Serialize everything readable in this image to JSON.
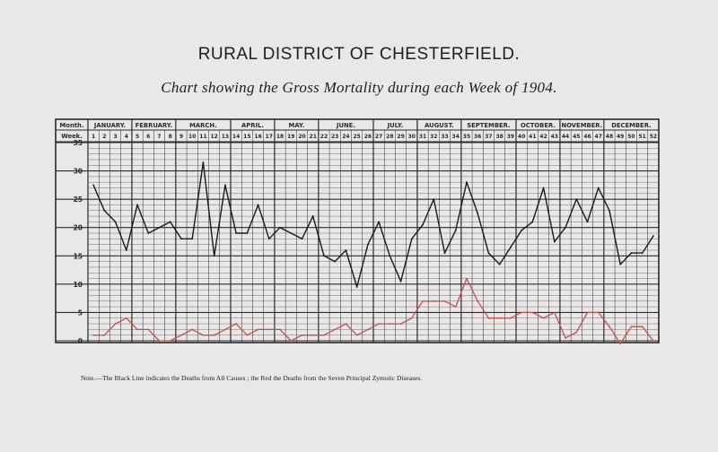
{
  "title": "RURAL DISTRICT OF CHESTERFIELD.",
  "subtitle": "Chart showing the Gross Mortality during each Week of 1904.",
  "note": "Note.—The Black Line indicates the Deaths from All Causes ; the Red the Deaths from the Seven Principal Zymotic Diseases.",
  "colors": {
    "background": "#e9e8e6",
    "grid": "#2a2a2a",
    "all_causes": "#1a1a1a",
    "zymotic": "#c0534c"
  },
  "chart_data": {
    "type": "line",
    "header_month_label": "Month.",
    "header_week_label": "Week.",
    "months": [
      {
        "name": "JANUARY.",
        "weeks": 4
      },
      {
        "name": "FEBRUARY.",
        "weeks": 4
      },
      {
        "name": "MARCH.",
        "weeks": 5
      },
      {
        "name": "APRIL.",
        "weeks": 4
      },
      {
        "name": "MAY.",
        "weeks": 4
      },
      {
        "name": "JUNE.",
        "weeks": 5
      },
      {
        "name": "JULY.",
        "weeks": 4
      },
      {
        "name": "AUGUST.",
        "weeks": 4
      },
      {
        "name": "SEPTEMBER.",
        "weeks": 5
      },
      {
        "name": "OCTOBER.",
        "weeks": 4
      },
      {
        "name": "NOVEMBER.",
        "weeks": 4
      },
      {
        "name": "DECEMBER.",
        "weeks": 5
      }
    ],
    "weeks": [
      1,
      2,
      3,
      4,
      5,
      6,
      7,
      8,
      9,
      10,
      11,
      12,
      13,
      14,
      15,
      16,
      17,
      18,
      19,
      20,
      21,
      22,
      23,
      24,
      25,
      26,
      27,
      28,
      29,
      30,
      31,
      32,
      33,
      34,
      35,
      36,
      37,
      38,
      39,
      40,
      41,
      42,
      43,
      44,
      45,
      46,
      47,
      48,
      49,
      50,
      51,
      52
    ],
    "ylim": [
      0,
      35
    ],
    "yticks": [
      0,
      5,
      10,
      15,
      20,
      25,
      30,
      35
    ],
    "grid": true,
    "series": [
      {
        "name": "All Causes",
        "values": [
          27.5,
          23,
          21,
          16,
          24,
          19,
          20,
          21,
          18,
          18,
          31.5,
          15,
          27.5,
          19,
          19,
          24,
          18,
          20,
          19,
          18,
          22,
          15,
          14,
          16,
          9.5,
          17,
          21,
          15,
          10.5,
          18,
          20.5,
          25,
          15.5,
          19.5,
          28,
          22.5,
          15.5,
          13.5,
          16.5,
          19.5,
          21,
          27,
          17.5,
          20,
          25,
          21,
          27,
          23,
          13.5,
          15.5,
          15.5,
          18.5
        ]
      },
      {
        "name": "Seven Principal Zymotic Diseases",
        "values": [
          1,
          1,
          3,
          4,
          2,
          2,
          0,
          0,
          1,
          2,
          1,
          1,
          2,
          3,
          1,
          2,
          2,
          2,
          0,
          1,
          1,
          1,
          2,
          3,
          1,
          2,
          3,
          3,
          3,
          4,
          7,
          7,
          7,
          6,
          11,
          7,
          4,
          4,
          4,
          5,
          5,
          4,
          5,
          0.5,
          1.5,
          5,
          5,
          2.5,
          -0.5,
          2.5,
          2.5,
          0
        ]
      }
    ]
  }
}
